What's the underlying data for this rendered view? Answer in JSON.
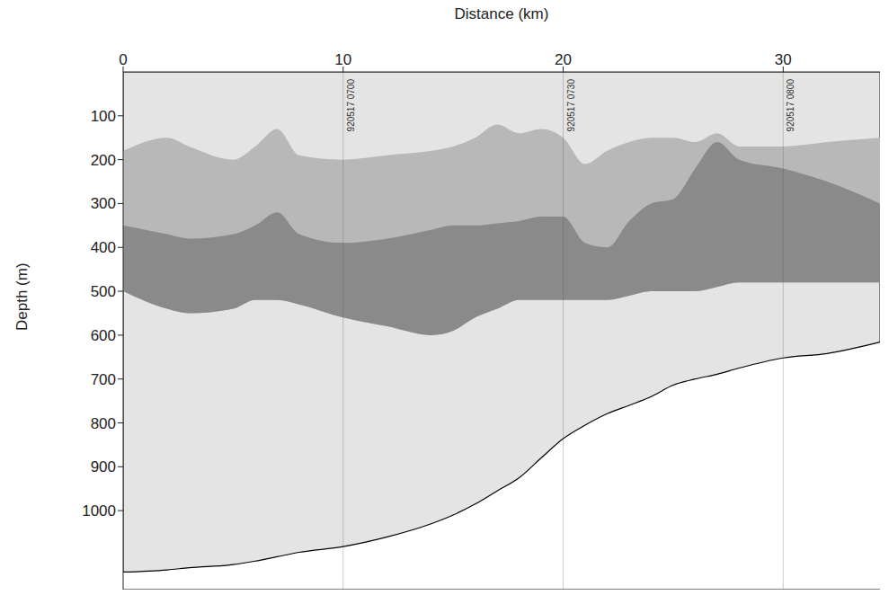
{
  "chart_data": {
    "type": "echogram",
    "x_label": "Distance (km)",
    "y_label": "Depth (m)",
    "x": [
      0,
      2,
      3,
      5,
      6,
      7,
      8,
      10,
      12,
      14,
      15,
      16,
      17,
      18,
      19,
      20,
      21,
      22,
      23,
      24,
      25,
      26,
      27,
      28,
      30,
      32,
      34.4
    ],
    "seafloor": {
      "color": "#ffffff",
      "depth": [
        1140,
        1135,
        1130,
        1123,
        1115,
        1105,
        1095,
        1082,
        1060,
        1030,
        1010,
        985,
        955,
        925,
        880,
        836,
        805,
        779,
        760,
        740,
        714,
        700,
        689,
        675,
        652,
        642,
        616
      ]
    },
    "layers": [
      {
        "color": "#b8b8b8",
        "top": [
          180,
          150,
          170,
          200,
          170,
          130,
          190,
          200,
          190,
          180,
          170,
          150,
          120,
          140,
          130,
          150,
          210,
          180,
          160,
          150,
          150,
          160,
          140,
          170,
          170,
          160,
          150
        ],
        "bottom": [
          500,
          540,
          550,
          540,
          520,
          520,
          530,
          560,
          580,
          600,
          590,
          560,
          540,
          520,
          520,
          520,
          520,
          520,
          510,
          500,
          500,
          500,
          490,
          480,
          480,
          480,
          480
        ]
      },
      {
        "color": "#8a8a8a",
        "top": [
          350,
          370,
          380,
          370,
          350,
          320,
          370,
          390,
          380,
          360,
          350,
          350,
          345,
          340,
          330,
          330,
          390,
          400,
          340,
          300,
          290,
          220,
          160,
          200,
          220,
          250,
          300
        ],
        "bottom": [
          500,
          540,
          550,
          540,
          520,
          520,
          530,
          560,
          580,
          600,
          590,
          560,
          540,
          520,
          520,
          520,
          520,
          520,
          510,
          500,
          500,
          500,
          490,
          480,
          480,
          480,
          480
        ]
      }
    ],
    "annotations": [
      {
        "x": 10,
        "text": "920517 0700"
      },
      {
        "x": 20,
        "text": "920517 0730"
      },
      {
        "x": 30,
        "text": "920517 0800"
      }
    ],
    "xlim": [
      0,
      34.4
    ],
    "ylim": [
      0,
      1180
    ],
    "xticks": [
      0,
      10,
      20,
      30
    ],
    "yticks": [
      100,
      200,
      300,
      400,
      500,
      600,
      700,
      800,
      900,
      1000
    ],
    "grid": false
  }
}
